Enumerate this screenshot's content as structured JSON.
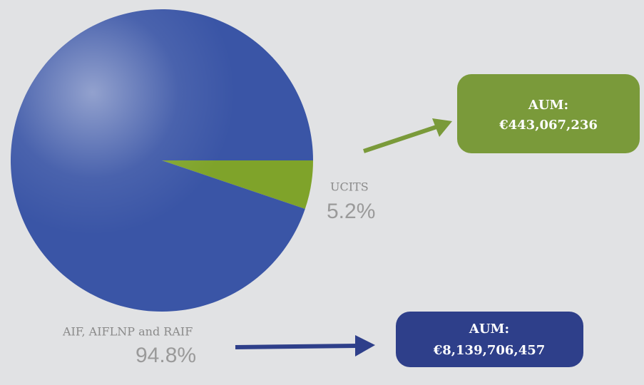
{
  "chart_data": {
    "type": "pie",
    "categories": [
      "UCITS",
      "AIF, AIFLNP and RAIF"
    ],
    "values": [
      5.2,
      94.8
    ],
    "value_labels": [
      "5.2%",
      "94.8%"
    ],
    "colors": [
      "#7fa32a",
      "#3a55a6"
    ],
    "annotations": [
      {
        "label": "AUM:",
        "value": "€443,067,236",
        "color": "#7a9a3a"
      },
      {
        "label": "AUM:",
        "value": "€8,139,706,457",
        "color": "#2e3f8a"
      }
    ]
  }
}
